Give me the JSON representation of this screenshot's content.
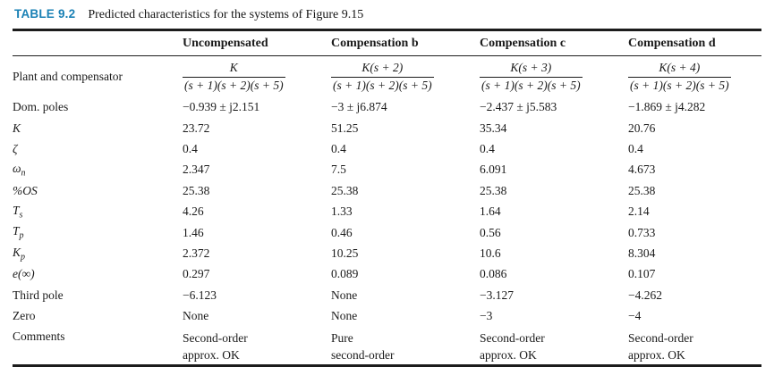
{
  "title": {
    "label": "TABLE 9.2",
    "caption": "Predicted characteristics for the systems of Figure 9.15"
  },
  "colors": {
    "table_label_blue": "#1a81b5",
    "text": "#1b1b1b"
  },
  "columns": {
    "c1": "Uncompensated",
    "c2": "Compensation b",
    "c3": "Compensation c",
    "c4": "Compensation d"
  },
  "plant_row": {
    "label": "Plant and compensator",
    "fractions": [
      {
        "num": "K",
        "den": "(s + 1)(s + 2)(s + 5)"
      },
      {
        "num": "K(s + 2)",
        "den": "(s + 1)(s + 2)(s + 5)"
      },
      {
        "num": "K(s + 3)",
        "den": "(s + 1)(s + 2)(s + 5)"
      },
      {
        "num": "K(s + 4)",
        "den": "(s + 1)(s + 2)(s + 5)"
      }
    ]
  },
  "rows": [
    {
      "label": "Dom. poles",
      "values": [
        "−0.939 ± j2.151",
        "−3 ± j6.874",
        "−2.437 ± j5.583",
        "−1.869 ± j4.282"
      ]
    },
    {
      "label": "K",
      "values": [
        "23.72",
        "51.25",
        "35.34",
        "20.76"
      ]
    },
    {
      "label": "ζ",
      "values": [
        "0.4",
        "0.4",
        "0.4",
        "0.4"
      ]
    },
    {
      "label": "ω",
      "label_sub": "n",
      "values": [
        "2.347",
        "7.5",
        "6.091",
        "4.673"
      ]
    },
    {
      "label": "%OS",
      "values": [
        "25.38",
        "25.38",
        "25.38",
        "25.38"
      ]
    },
    {
      "label": "T",
      "label_sub": "s",
      "values": [
        "4.26",
        "1.33",
        "1.64",
        "2.14"
      ]
    },
    {
      "label": "T",
      "label_sub": "p",
      "values": [
        "1.46",
        "0.46",
        "0.56",
        "0.733"
      ]
    },
    {
      "label": "K",
      "label_sub": "p",
      "values": [
        "2.372",
        "10.25",
        "10.6",
        "8.304"
      ]
    },
    {
      "label": "e(∞)",
      "values": [
        "0.297",
        "0.089",
        "0.086",
        "0.107"
      ]
    },
    {
      "label": "Third pole",
      "values": [
        "−6.123",
        "None",
        "−3.127",
        "−4.262"
      ]
    },
    {
      "label": "Zero",
      "values": [
        "None",
        "None",
        "−3",
        "−4"
      ]
    },
    {
      "label": "Comments",
      "values": [
        "Second-order\napprox. OK",
        "Pure\nsecond-order",
        "Second-order\napprox. OK",
        "Second-order\napprox. OK"
      ]
    }
  ]
}
